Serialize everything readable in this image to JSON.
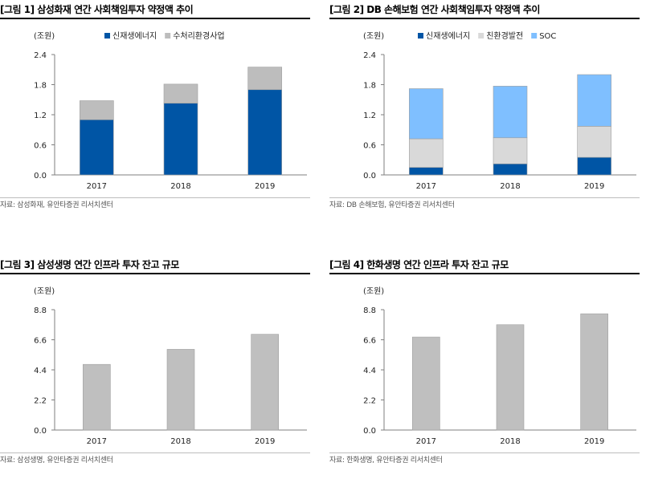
{
  "chart_data": [
    {
      "type": "bar",
      "stacked": true,
      "title": "[그림 1] 삼성화재 연간 사회책임투자 약정액 추이",
      "unit_label": "(조원)",
      "categories": [
        "2017",
        "2018",
        "2019"
      ],
      "ylim": [
        0,
        2.4
      ],
      "yticks": [
        "0.0",
        "0.6",
        "1.2",
        "1.8",
        "2.4"
      ],
      "series": [
        {
          "name": "신재생에너지",
          "color": "#0055a5",
          "values": [
            1.1,
            1.43,
            1.7
          ]
        },
        {
          "name": "수처리환경사업",
          "color": "#bdbdbd",
          "values": [
            0.38,
            0.38,
            0.45
          ]
        }
      ],
      "legend_position": "top",
      "source": "자료: 삼성화재, 유안타증권 리서치센터"
    },
    {
      "type": "bar",
      "stacked": true,
      "title": "[그림 2] DB 손해보험 연간 사회책임투자 약정액 추이",
      "unit_label": "(조원)",
      "categories": [
        "2017",
        "2018",
        "2019"
      ],
      "ylim": [
        0,
        2.4
      ],
      "yticks": [
        "0.0",
        "0.6",
        "1.2",
        "1.8",
        "2.4"
      ],
      "series": [
        {
          "name": "신재생에너지",
          "color": "#0055a5",
          "values": [
            0.15,
            0.22,
            0.35
          ]
        },
        {
          "name": "친환경발전",
          "color": "#d9d9d9",
          "values": [
            0.57,
            0.52,
            0.62
          ]
        },
        {
          "name": "SOC",
          "color": "#7fbfff",
          "values": [
            1.0,
            1.03,
            1.03
          ]
        }
      ],
      "legend_position": "top",
      "source": "자료: DB 손해보험, 유안타증권 리서치센터"
    },
    {
      "type": "bar",
      "title": "[그림 3] 삼성생명 연간 인프라 투자 잔고 규모",
      "unit_label": "(조원)",
      "categories": [
        "2017",
        "2018",
        "2019"
      ],
      "ylim": [
        0,
        8.8
      ],
      "yticks": [
        "0.0",
        "2.2",
        "4.4",
        "6.6",
        "8.8"
      ],
      "series": [
        {
          "name": "",
          "color": "#bfbfbf",
          "values": [
            4.8,
            5.9,
            7.0
          ]
        }
      ],
      "source": "자료: 삼성생명, 유안타증권 리서치센터"
    },
    {
      "type": "bar",
      "title": "[그림 4] 한화생명 연간 인프라 투자 잔고 규모",
      "unit_label": "(조원)",
      "categories": [
        "2017",
        "2018",
        "2019"
      ],
      "ylim": [
        0,
        8.8
      ],
      "yticks": [
        "0.0",
        "2.2",
        "4.4",
        "6.6",
        "8.8"
      ],
      "series": [
        {
          "name": "",
          "color": "#bfbfbf",
          "values": [
            6.8,
            7.7,
            8.5
          ]
        }
      ],
      "source": "자료: 한화생명, 유안타증권 리서치센터"
    }
  ]
}
